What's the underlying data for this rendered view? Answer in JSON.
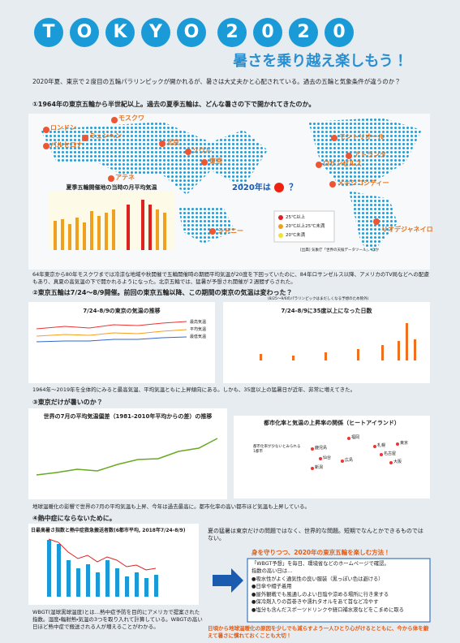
{
  "header": {
    "title": [
      "T",
      "O",
      "K",
      "Y",
      "O",
      "2",
      "0",
      "2",
      "0"
    ],
    "subtitle": "暑さを乗り越え楽しもう！",
    "intro": "2020年夏、東京で２度目の五輪パラリンピックが開かれるが、暑さは大丈夫かと心配されている。過去の五輪と気象条件が違うのか？"
  },
  "section1": {
    "heading": "①1964年の東京五輪から半世紀以上。過去の夏季五輪は、どんな暑さの下で開かれてきたのか。",
    "cities": [
      "ロンドン",
      "モスクワ",
      "ミュンヘン",
      "バルセロナ",
      "北京",
      "ソウル",
      "東京",
      "アテネ",
      "モントリオール",
      "アトランタ",
      "ロサンゼルス",
      "メキシコシティー",
      "シドニー",
      "リオデジャネイロ"
    ],
    "question": "2020年は",
    "question_mark": "？",
    "chart_title": "夏季五輪開催地の当時の月平均気温",
    "legend": [
      "25℃以上",
      "20℃以上25℃未満",
      "20℃未満"
    ],
    "source": "[出典] 気象庁「世界の天候データツール」、ほか",
    "body": "64年東京から80年モスクワまでは冷涼な地域や秋開催で五輪開催時の期間平均気温が20度を下回っていたのに、84年ロサンゼルス以降、アメリカのTV局などへの配慮もあり、真夏の高気温の下で開かれるようになった。北京五輪では、猛暑が予想され開催が２週間ずらされた。"
  },
  "section2": {
    "heading": "②東京五輪は7/24～8/9開催。前回の東京五輪以降、この期間の東京の気温は変わった？",
    "note": "(8/25～9/6のパラリンピックはまだしくなる予想のため除外)",
    "chart_a_title": "7/24-8/9の東京の気温の推移",
    "chart_a_legend": [
      "最高気温",
      "平均気温",
      "最低気温"
    ],
    "chart_b_title": "7/24-8/9に35度以上になった日数",
    "body": "1964年～2019年を全体的にみると最高気温、平均気温ともに上昇傾向にある。しかも、35度以上の猛暑日が近年、非常に増えてきた。"
  },
  "section3": {
    "heading": "③東京だけが暑いのか？",
    "chart_c_title": "世界の7月の平均気温偏差（1981-2010年平均からの差）の推移",
    "chart_d_title": "都市化率と気温の上昇率の関係（ヒートアイランド）",
    "chart_d_labels": [
      "東京",
      "名古屋",
      "大阪",
      "福岡",
      "札幌",
      "鹿児島",
      "仙台",
      "広島",
      "新潟"
    ],
    "chart_d_note": "都市化率が少ないとみられる1都市",
    "body": "地球温暖化の影響で世界の7月の平均気温も上昇、今年は過去最高に。都市化率の高い都市ほど気温も上昇している。"
  },
  "section4": {
    "heading": "④熱中症にならないために。",
    "chart_e_title": "日最高暑さ指数と熱中症救急搬送者数(6都市平均, 2018年7/24-8/9)",
    "body": "WBGT(湿球黒球温度)とは…熱中症予防を目的にアメリカで提案された指数。湿度・輻射熱・気温の3つを取り入れて計算している。WBGTの高い日ほど熱中症で搬送される人が増えることがわかる。",
    "right_text": "夏の猛暑は東京だけの問題ではなく、世界的な問題。短期でなんとかできるものではない。",
    "box_heading": "身を守りつつ、2020年の東京五輪を楽しむ方法！",
    "items": [
      "「WBGT予想」を毎日、環境省などのホームページで確認。",
      "指数の高い日は…",
      "●吸水性がよく通気性の良い服装（黒っぽい色は避ける）",
      "●日傘や帽子着用",
      "●屋外観戦でも風通しのよい日陰や涼める場所に行き来する",
      "●保冷剤入りの首巻きや濡れタオルをあて首など冷やす",
      "●塩分も含んだスポーツドリンクや経口補水液などをこまめに取る"
    ],
    "footer": "日頃から地球温暖化の原因を少しでも減らすよう一人ひとり心がけるとともに、今から体を鍛えて暑さに慣れておくことも大切！"
  }
}
